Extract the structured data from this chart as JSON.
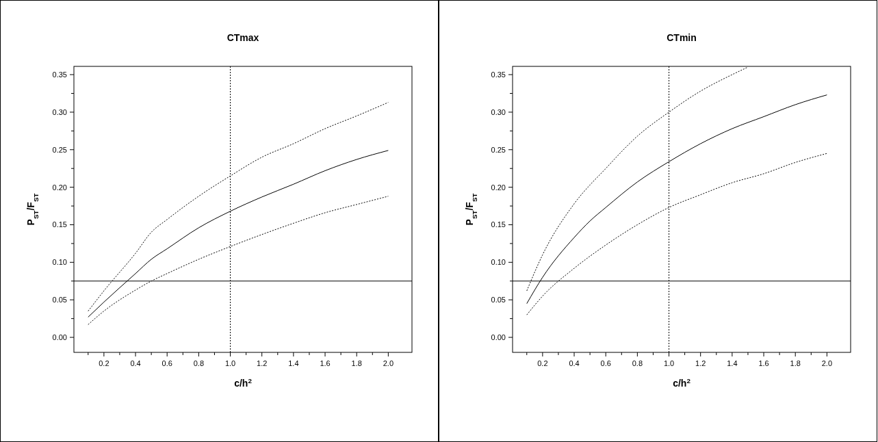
{
  "chart_data": [
    {
      "type": "line",
      "title": "CTmax",
      "xlabel": "c/h$^{2}$",
      "ylabel": "P$_{ST}$/F$_{ST}$",
      "xlim": [
        0.01,
        2.15
      ],
      "ylim": [
        -0.02,
        0.361
      ],
      "xticks": [
        {
          "value": 0.1,
          "label": null
        },
        0.2,
        {
          "value": 0.3,
          "label": null
        },
        0.4,
        {
          "value": 0.5,
          "label": null
        },
        0.6,
        {
          "value": 0.7,
          "label": null
        },
        0.8,
        {
          "value": 0.9,
          "label": null
        },
        {
          "value": 1,
          "label": "1.0"
        },
        {
          "value": 1.1,
          "label": null
        },
        1.2,
        {
          "value": 1.3,
          "label": null
        },
        1.4,
        {
          "value": 1.5,
          "label": null
        },
        1.6,
        {
          "value": 1.7,
          "label": null
        },
        1.8,
        {
          "value": 1.9,
          "label": null
        },
        {
          "value": 2,
          "label": "2.0"
        }
      ],
      "yticks": [
        {
          "value": 0,
          "label": "0.00"
        },
        {
          "value": 0.025,
          "label": null
        },
        0.05,
        {
          "value": 0.075,
          "label": null
        },
        {
          "value": 0.1,
          "label": "0.10"
        },
        {
          "value": 0.125,
          "label": null
        },
        0.15,
        {
          "value": 0.175,
          "label": null
        },
        {
          "value": 0.2,
          "label": "0.20"
        },
        {
          "value": 0.225,
          "label": null
        },
        0.25,
        {
          "value": 0.275,
          "label": null
        },
        {
          "value": 0.3,
          "label": "0.30"
        },
        {
          "value": 0.325,
          "label": null
        },
        0.35
      ],
      "x": [
        0.1,
        0.2,
        0.4,
        0.5,
        0.6,
        0.8,
        1.0,
        1.2,
        1.4,
        1.6,
        1.8,
        2.0
      ],
      "series": [
        {
          "color": "#000000",
          "line_style": "solid",
          "values": [
            0.027,
            0.047,
            0.085,
            0.104,
            0.118,
            0.146,
            0.168,
            0.187,
            0.204,
            0.222,
            0.237,
            0.249
          ]
        },
        {
          "color": "#000000",
          "line_style": "dotted",
          "values": [
            0.035,
            0.062,
            0.112,
            0.14,
            0.157,
            0.188,
            0.215,
            0.24,
            0.258,
            0.278,
            0.295,
            0.313
          ]
        },
        {
          "color": "#000000",
          "line_style": "dotted",
          "values": [
            0.017,
            0.035,
            0.063,
            0.075,
            0.085,
            0.104,
            0.121,
            0.137,
            0.152,
            0.166,
            0.177,
            0.188
          ]
        }
      ],
      "ref_lines": [
        {
          "axis": "y",
          "value": 0.075,
          "line_style": "solid",
          "color": "#000000"
        },
        {
          "axis": "x",
          "value": 1.0,
          "line_style": "dotted",
          "color": "#000000"
        }
      ],
      "grid": false
    },
    {
      "type": "line",
      "title": "CTmin",
      "xlabel": "c/h$^{2}$",
      "ylabel": "P$_{ST}$/F$_{ST}$",
      "xlim": [
        0.01,
        2.15
      ],
      "ylim": [
        -0.02,
        0.361
      ],
      "xticks": [
        {
          "value": 0.1,
          "label": null
        },
        0.2,
        {
          "value": 0.3,
          "label": null
        },
        0.4,
        {
          "value": 0.5,
          "label": null
        },
        0.6,
        {
          "value": 0.7,
          "label": null
        },
        0.8,
        {
          "value": 0.9,
          "label": null
        },
        {
          "value": 1,
          "label": "1.0"
        },
        {
          "value": 1.1,
          "label": null
        },
        1.2,
        {
          "value": 1.3,
          "label": null
        },
        1.4,
        {
          "value": 1.5,
          "label": null
        },
        1.6,
        {
          "value": 1.7,
          "label": null
        },
        1.8,
        {
          "value": 1.9,
          "label": null
        },
        {
          "value": 2,
          "label": "2.0"
        }
      ],
      "yticks": [
        {
          "value": 0,
          "label": "0.00"
        },
        {
          "value": 0.025,
          "label": null
        },
        0.05,
        {
          "value": 0.075,
          "label": null
        },
        {
          "value": 0.1,
          "label": "0.10"
        },
        {
          "value": 0.125,
          "label": null
        },
        0.15,
        {
          "value": 0.175,
          "label": null
        },
        {
          "value": 0.2,
          "label": "0.20"
        },
        {
          "value": 0.225,
          "label": null
        },
        0.25,
        {
          "value": 0.275,
          "label": null
        },
        {
          "value": 0.3,
          "label": "0.30"
        },
        {
          "value": 0.325,
          "label": null
        },
        0.35
      ],
      "series": [
        {
          "color": "#000000",
          "line_style": "solid",
          "x": [
            0.1,
            0.2,
            0.4,
            0.5,
            0.6,
            0.8,
            1.0,
            1.2,
            1.4,
            1.6,
            1.8,
            2.0
          ],
          "values": [
            0.045,
            0.08,
            0.133,
            0.155,
            0.173,
            0.207,
            0.234,
            0.258,
            0.278,
            0.294,
            0.31,
            0.323
          ]
        },
        {
          "color": "#000000",
          "line_style": "dotted",
          "x": [
            0.1,
            0.2,
            0.4,
            0.6,
            0.8,
            1.0,
            1.2,
            1.4,
            1.5
          ],
          "values": [
            0.062,
            0.11,
            0.178,
            0.225,
            0.268,
            0.3,
            0.328,
            0.35,
            0.36
          ]
        },
        {
          "color": "#000000",
          "line_style": "dotted",
          "x": [
            0.1,
            0.2,
            0.4,
            0.6,
            0.8,
            1.0,
            1.2,
            1.4,
            1.6,
            1.8,
            2.0
          ],
          "values": [
            0.03,
            0.055,
            0.092,
            0.123,
            0.15,
            0.173,
            0.19,
            0.206,
            0.218,
            0.233,
            0.245
          ]
        }
      ],
      "ref_lines": [
        {
          "axis": "y",
          "value": 0.075,
          "line_style": "solid",
          "color": "#000000"
        },
        {
          "axis": "x",
          "value": 1.0,
          "line_style": "dotted",
          "color": "#000000"
        }
      ],
      "grid": false
    }
  ]
}
